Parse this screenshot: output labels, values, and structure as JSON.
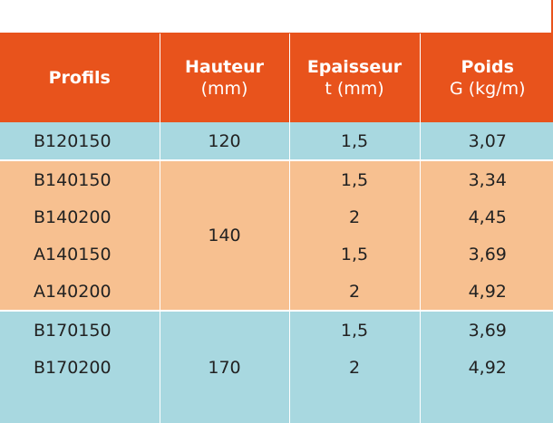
{
  "headers": [
    {
      "title": "Profils",
      "unit": ""
    },
    {
      "title": "Hauteur",
      "unit": "(mm)"
    },
    {
      "title": "Epaisseur",
      "unit": "t (mm)"
    },
    {
      "title": "Poids",
      "unit": "G (kg/m)"
    }
  ],
  "groups": [
    {
      "hauteur": "120",
      "rows": [
        {
          "profil": "B120150",
          "epaisseur": "1,5",
          "poids": "3,07"
        }
      ]
    },
    {
      "hauteur": "140",
      "rows": [
        {
          "profil": "B140150",
          "epaisseur": "1,5",
          "poids": "3,34"
        },
        {
          "profil": "B140200",
          "epaisseur": "2",
          "poids": "4,45"
        },
        {
          "profil": "A140150",
          "epaisseur": "1,5",
          "poids": "3,69"
        },
        {
          "profil": "A140200",
          "epaisseur": "2",
          "poids": "4,92"
        }
      ]
    },
    {
      "hauteur": "170",
      "rows": [
        {
          "profil": "B170150",
          "epaisseur": "1,5",
          "poids": "3,69"
        },
        {
          "profil": "B170200",
          "epaisseur": "2",
          "poids": "4,92"
        },
        {
          "profil": "",
          "epaisseur": "",
          "poids": ""
        }
      ]
    }
  ],
  "colors": {
    "header": "#e8531c",
    "band_a": "#a8d8e0",
    "band_b": "#f7c090"
  }
}
